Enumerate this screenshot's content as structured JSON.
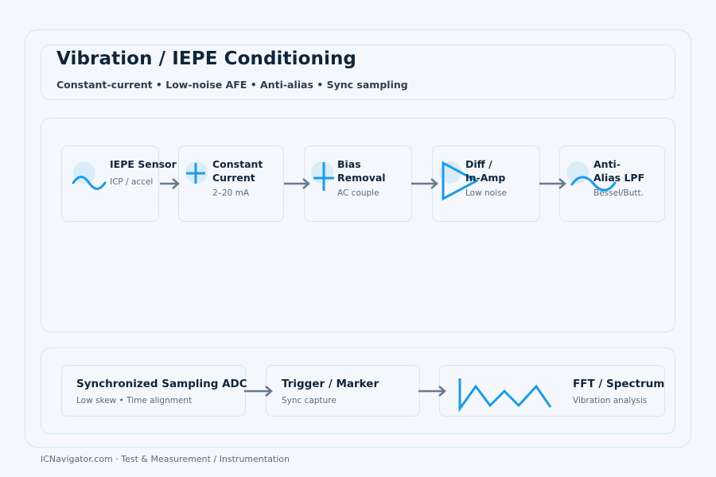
{
  "header": {
    "title": "Vibration / IEPE Conditioning",
    "subtitle": "Constant-current • Low-noise AFE • Anti-alias • Sync sampling"
  },
  "chain": [
    {
      "title": "IEPE Sensor",
      "sub": "ICP / accel",
      "icon": "sine-wave-icon"
    },
    {
      "title": "Constant\nCurrent",
      "sub": "2–20 mA",
      "icon": "plus-icon"
    },
    {
      "title": "Bias\nRemoval",
      "sub": "AC couple",
      "icon": "capacitor-icon"
    },
    {
      "title": "Diff /\nIn-Amp",
      "sub": "Low noise",
      "icon": "amplifier-triangle-icon"
    },
    {
      "title": "Anti-\nAlias LPF",
      "sub": "Bessel/Butt.",
      "icon": "sine-wave-icon"
    }
  ],
  "acquisition": [
    {
      "title": "Synchronized Sampling ADC",
      "sub": "Low skew • Time alignment"
    },
    {
      "title": "Trigger / Marker",
      "sub": "Sync capture"
    },
    {
      "title": "FFT / Spectrum",
      "sub": "Vibration analysis",
      "icon": "zigzag-spectrum-icon"
    }
  ],
  "footer": "ICNavigator.com · Test & Measurement / Instrumentation",
  "colors": {
    "accent": "#1e9be6",
    "arrow": "#6b7a8c",
    "panel_border": "#d3e6f5",
    "icon_circle": "#d9ecfa"
  }
}
